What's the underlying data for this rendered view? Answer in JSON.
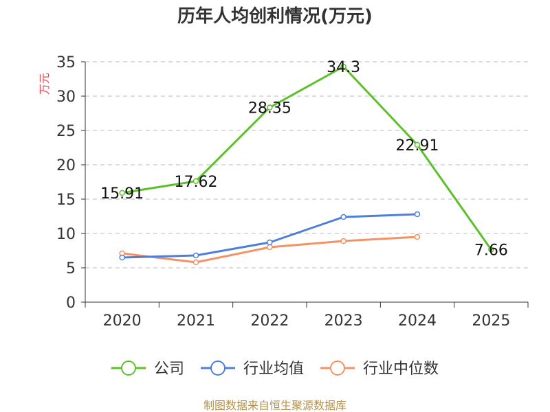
{
  "chart_data": {
    "type": "line",
    "title": "历年人均创利情况(万元)",
    "ylabel": "万元",
    "xlabel": "",
    "categories": [
      "2020",
      "2021",
      "2022",
      "2023",
      "2024",
      "2025"
    ],
    "ylim": [
      0,
      35
    ],
    "yticks": [
      0,
      5,
      10,
      15,
      20,
      25,
      30,
      35
    ],
    "grid": true,
    "legend_position": "bottom-center",
    "series": [
      {
        "name": "公司",
        "color": "#5cc02a",
        "values": [
          15.91,
          17.62,
          28.35,
          34.3,
          22.91,
          7.66
        ],
        "labels": [
          "15.91",
          "17.62",
          "28.35",
          "34.3",
          "22.91",
          "7.66"
        ],
        "show_labels": true
      },
      {
        "name": "行业均值",
        "color": "#4e7fd8",
        "values": [
          6.5,
          6.8,
          8.7,
          12.4,
          12.8,
          null
        ],
        "show_labels": false
      },
      {
        "name": "行业中位数",
        "color": "#f59162",
        "values": [
          7.1,
          5.8,
          8.0,
          8.9,
          9.5,
          null
        ],
        "show_labels": false
      }
    ]
  },
  "colors": {
    "ylabel": "#e0474c",
    "source": "#b7914a",
    "axis": "#333333",
    "grid": "#bbbbbb"
  },
  "source": "制图数据来自恒生聚源数据库"
}
